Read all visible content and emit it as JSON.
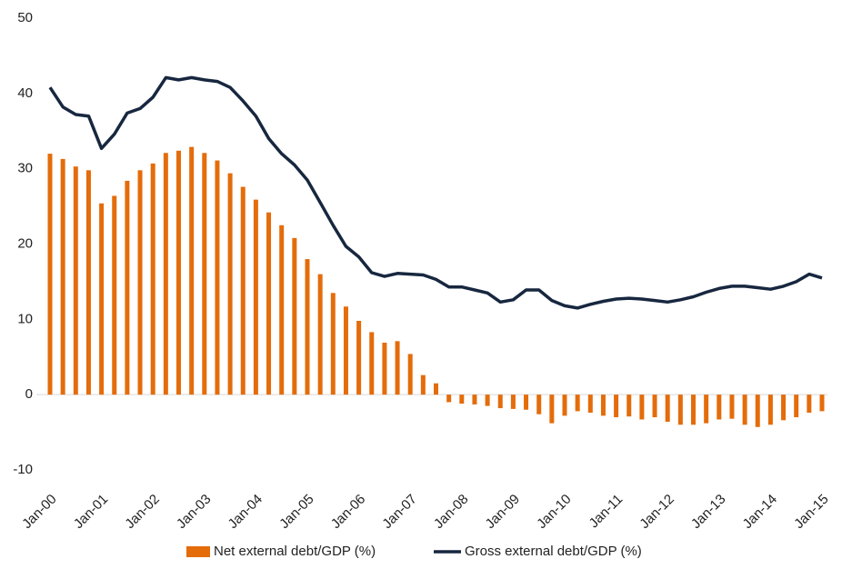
{
  "chart_data": {
    "type": "bar_line",
    "categories": [
      "Jan-00",
      null,
      null,
      null,
      "Jan-01",
      null,
      null,
      null,
      "Jan-02",
      null,
      null,
      null,
      "Jan-03",
      null,
      null,
      null,
      "Jan-04",
      null,
      null,
      null,
      "Jan-05",
      null,
      null,
      null,
      "Jan-06",
      null,
      null,
      null,
      "Jan-07",
      null,
      null,
      null,
      "Jan-08",
      null,
      null,
      null,
      "Jan-09",
      null,
      null,
      null,
      "Jan-10",
      null,
      null,
      null,
      "Jan-11",
      null,
      null,
      null,
      "Jan-12",
      null,
      null,
      null,
      "Jan-13",
      null,
      null,
      null,
      "Jan-14",
      null,
      null,
      null,
      "Jan-15"
    ],
    "series": [
      {
        "name": "Net external debt/GDP (%)",
        "color": "#e46c0a",
        "kind": "bar",
        "values": [
          32,
          31.3,
          30.3,
          29.8,
          25.4,
          26.4,
          28.4,
          29.8,
          30.7,
          32.1,
          32.4,
          32.9,
          32.1,
          31.1,
          29.4,
          27.6,
          25.9,
          24.2,
          22.5,
          20.8,
          18,
          16,
          13.5,
          11.7,
          9.8,
          8.3,
          6.9,
          7.1,
          5.4,
          2.6,
          1.5,
          -1,
          -1.2,
          -1.3,
          -1.5,
          -1.8,
          -1.9,
          -2,
          -2.6,
          -3.8,
          -2.8,
          -2.2,
          -2.4,
          -2.8,
          -3,
          -2.9,
          -3.3,
          -3,
          -3.6,
          -4,
          -4,
          -3.8,
          -3.3,
          -3.2,
          -4,
          -4.3,
          -4,
          -3.4,
          -3,
          -2.4,
          -2.2
        ]
      },
      {
        "name": "Gross external debt/GDP (%)",
        "color": "#17273f",
        "kind": "line",
        "values": [
          40.8,
          38.2,
          37.2,
          37,
          32.7,
          34.6,
          37.4,
          38,
          39.5,
          42.1,
          41.8,
          42.1,
          41.8,
          41.6,
          40.8,
          39,
          37,
          34,
          32,
          30.5,
          28.5,
          25.5,
          22.5,
          19.7,
          18.3,
          16.2,
          15.7,
          16.1,
          16,
          15.9,
          15.3,
          14.3,
          14.3,
          13.9,
          13.5,
          12.3,
          12.6,
          13.9,
          13.9,
          12.5,
          11.8,
          11.5,
          12,
          12.4,
          12.7,
          12.8,
          12.7,
          12.5,
          12.3,
          12.6,
          13,
          13.6,
          14.1,
          14.4,
          14.4,
          14.2,
          14,
          14.4,
          15,
          16,
          15.5
        ]
      }
    ],
    "ylim": [
      -10,
      50
    ],
    "yticks": [
      -10,
      0,
      10,
      20,
      30,
      40,
      50
    ],
    "grid": false
  }
}
